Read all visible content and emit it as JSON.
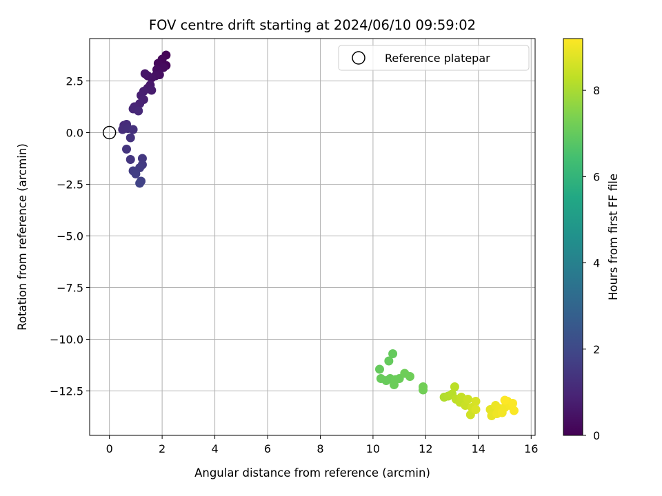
{
  "chart_data": {
    "type": "scatter",
    "title": "FOV centre drift starting at 2024/06/10 09:59:02",
    "xlabel": "Angular distance from reference (arcmin)",
    "ylabel": "Rotation from reference (arcmin)",
    "xlim": [
      -0.75,
      16.15
    ],
    "ylim": [
      -14.65,
      4.55
    ],
    "xticks": [
      0,
      2,
      4,
      6,
      8,
      10,
      12,
      14,
      16
    ],
    "yticks": [
      2.5,
      0.0,
      -2.5,
      -5.0,
      -7.5,
      -10.0,
      -12.5
    ],
    "grid": true,
    "legend": {
      "placement": "top-right",
      "entries": [
        "Reference platepar"
      ]
    },
    "reference_point": {
      "x": 0,
      "y": 0
    },
    "colorbar": {
      "label": "Hours from first FF file",
      "range": [
        0,
        9.2
      ],
      "ticks": [
        0,
        2,
        4,
        6,
        8
      ],
      "colormap": "viridis"
    },
    "points": [
      {
        "x": 2.15,
        "y": 3.75,
        "h": 0.05
      },
      {
        "x": 2.15,
        "y": 3.25,
        "h": 0.1
      },
      {
        "x": 2.0,
        "y": 3.55,
        "h": 0.15
      },
      {
        "x": 1.85,
        "y": 3.35,
        "h": 0.2
      },
      {
        "x": 2.05,
        "y": 3.15,
        "h": 0.25
      },
      {
        "x": 1.8,
        "y": 3.05,
        "h": 0.3
      },
      {
        "x": 1.9,
        "y": 2.8,
        "h": 0.35
      },
      {
        "x": 1.75,
        "y": 2.75,
        "h": 0.4
      },
      {
        "x": 1.6,
        "y": 2.65,
        "h": 0.45
      },
      {
        "x": 1.45,
        "y": 2.75,
        "h": 0.5
      },
      {
        "x": 1.35,
        "y": 2.85,
        "h": 0.55
      },
      {
        "x": 1.55,
        "y": 2.3,
        "h": 0.6
      },
      {
        "x": 1.45,
        "y": 2.15,
        "h": 0.65
      },
      {
        "x": 1.6,
        "y": 2.05,
        "h": 0.7
      },
      {
        "x": 1.3,
        "y": 2.0,
        "h": 0.75
      },
      {
        "x": 1.2,
        "y": 1.8,
        "h": 0.8
      },
      {
        "x": 1.3,
        "y": 1.6,
        "h": 0.85
      },
      {
        "x": 1.15,
        "y": 1.4,
        "h": 0.9
      },
      {
        "x": 0.95,
        "y": 1.25,
        "h": 0.95
      },
      {
        "x": 0.9,
        "y": 1.15,
        "h": 1.0
      },
      {
        "x": 1.1,
        "y": 1.05,
        "h": 1.05
      },
      {
        "x": 0.55,
        "y": 0.35,
        "h": 1.1
      },
      {
        "x": 0.65,
        "y": 0.4,
        "h": 1.15
      },
      {
        "x": 0.5,
        "y": 0.15,
        "h": 1.2
      },
      {
        "x": 0.7,
        "y": 0.2,
        "h": 1.25
      },
      {
        "x": 0.9,
        "y": 0.15,
        "h": 1.3
      },
      {
        "x": 0.8,
        "y": -0.25,
        "h": 1.35
      },
      {
        "x": 0.65,
        "y": -0.8,
        "h": 1.4
      },
      {
        "x": 0.8,
        "y": -1.3,
        "h": 1.45
      },
      {
        "x": 1.25,
        "y": -1.25,
        "h": 1.5
      },
      {
        "x": 1.25,
        "y": -1.55,
        "h": 1.55
      },
      {
        "x": 1.15,
        "y": -1.7,
        "h": 1.6
      },
      {
        "x": 0.9,
        "y": -1.85,
        "h": 1.65
      },
      {
        "x": 1.0,
        "y": -2.0,
        "h": 1.7
      },
      {
        "x": 1.2,
        "y": -2.35,
        "h": 1.75
      },
      {
        "x": 1.15,
        "y": -2.45,
        "h": 1.8
      },
      {
        "x": 10.25,
        "y": -11.45,
        "h": 7.0
      },
      {
        "x": 10.6,
        "y": -11.05,
        "h": 7.0
      },
      {
        "x": 10.75,
        "y": -10.7,
        "h": 7.0
      },
      {
        "x": 10.3,
        "y": -11.9,
        "h": 7.05
      },
      {
        "x": 10.5,
        "y": -12.0,
        "h": 7.05
      },
      {
        "x": 10.65,
        "y": -11.9,
        "h": 7.05
      },
      {
        "x": 10.8,
        "y": -12.2,
        "h": 7.1
      },
      {
        "x": 10.85,
        "y": -11.95,
        "h": 7.1
      },
      {
        "x": 11.0,
        "y": -11.9,
        "h": 7.1
      },
      {
        "x": 11.2,
        "y": -11.65,
        "h": 7.15
      },
      {
        "x": 11.4,
        "y": -11.8,
        "h": 7.15
      },
      {
        "x": 11.9,
        "y": -12.3,
        "h": 7.2
      },
      {
        "x": 11.9,
        "y": -12.45,
        "h": 7.2
      },
      {
        "x": 12.7,
        "y": -12.8,
        "h": 8.1
      },
      {
        "x": 12.85,
        "y": -12.75,
        "h": 8.15
      },
      {
        "x": 13.0,
        "y": -12.65,
        "h": 8.2
      },
      {
        "x": 13.1,
        "y": -12.3,
        "h": 8.25
      },
      {
        "x": 13.15,
        "y": -12.9,
        "h": 8.3
      },
      {
        "x": 13.3,
        "y": -13.05,
        "h": 8.35
      },
      {
        "x": 13.35,
        "y": -12.8,
        "h": 8.4
      },
      {
        "x": 13.5,
        "y": -13.2,
        "h": 8.45
      },
      {
        "x": 13.6,
        "y": -12.9,
        "h": 8.5
      },
      {
        "x": 13.7,
        "y": -13.65,
        "h": 8.55
      },
      {
        "x": 13.75,
        "y": -13.3,
        "h": 8.6
      },
      {
        "x": 13.9,
        "y": -13.0,
        "h": 8.65
      },
      {
        "x": 13.9,
        "y": -13.4,
        "h": 8.7
      },
      {
        "x": 14.45,
        "y": -13.4,
        "h": 8.85
      },
      {
        "x": 14.5,
        "y": -13.7,
        "h": 8.9
      },
      {
        "x": 14.65,
        "y": -13.2,
        "h": 8.95
      },
      {
        "x": 14.7,
        "y": -13.6,
        "h": 9.0
      },
      {
        "x": 14.8,
        "y": -13.35,
        "h": 9.0
      },
      {
        "x": 14.9,
        "y": -13.55,
        "h": 9.05
      },
      {
        "x": 15.0,
        "y": -13.3,
        "h": 9.05
      },
      {
        "x": 15.1,
        "y": -13.0,
        "h": 9.1
      },
      {
        "x": 15.2,
        "y": -13.2,
        "h": 9.1
      },
      {
        "x": 15.3,
        "y": -13.1,
        "h": 9.15
      },
      {
        "x": 15.35,
        "y": -13.45,
        "h": 9.15
      },
      {
        "x": 15.0,
        "y": -12.95,
        "h": 9.2
      }
    ]
  }
}
